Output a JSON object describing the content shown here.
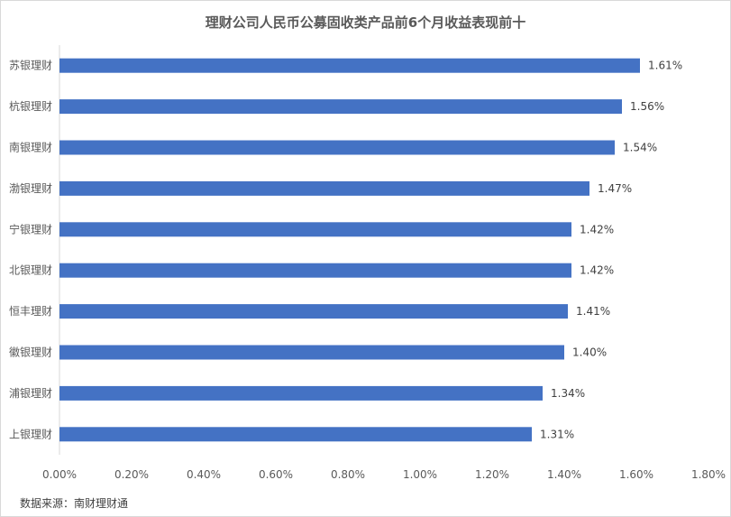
{
  "chart_data": {
    "type": "bar",
    "orientation": "horizontal",
    "title": "理财公司人民币公募固收类产品前6个月收益表现前十",
    "categories": [
      "苏银理财",
      "杭银理财",
      "南银理财",
      "渤银理财",
      "宁银理财",
      "北银理财",
      "恒丰理财",
      "徽银理财",
      "浦银理财",
      "上银理财"
    ],
    "values": [
      1.61,
      1.56,
      1.54,
      1.47,
      1.42,
      1.42,
      1.41,
      1.4,
      1.34,
      1.31
    ],
    "data_labels": [
      "1.61%",
      "1.56%",
      "1.54%",
      "1.47%",
      "1.42%",
      "1.42%",
      "1.41%",
      "1.40%",
      "1.34%",
      "1.31%"
    ],
    "xlim": [
      0,
      1.8
    ],
    "x_ticks": [
      0,
      0.2,
      0.4,
      0.6,
      0.8,
      1.0,
      1.2,
      1.4,
      1.6,
      1.8
    ],
    "x_tick_labels": [
      "0.00%",
      "0.20%",
      "0.40%",
      "0.60%",
      "0.80%",
      "1.00%",
      "1.20%",
      "1.40%",
      "1.60%",
      "1.80%"
    ],
    "grid": false,
    "bar_color": "#4472c4"
  },
  "footer": {
    "source": "数据来源：南财理财通"
  }
}
